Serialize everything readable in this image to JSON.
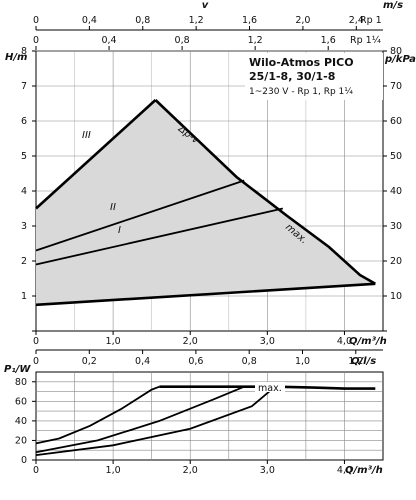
{
  "chart_data": [
    {
      "type": "line",
      "title": "Wilo-Atmos PICO",
      "subtitle": "25/1-8, 30/1-8",
      "note": "1~230 V - Rp 1, Rp 1¼",
      "xlabel": "Q/m³/h",
      "xlim": [
        0,
        4.5
      ],
      "x_ticks": [
        "0",
        "1,0",
        "2,0",
        "3,0",
        "4,0"
      ],
      "x_tick_values": [
        0,
        1,
        2,
        3,
        4
      ],
      "ylabel_left": "H/m",
      "ylim_left": [
        0,
        8
      ],
      "y_ticks_left": [
        "0",
        "1",
        "2",
        "3",
        "4",
        "5",
        "6",
        "7",
        "8"
      ],
      "ylabel_right": "p/kPa",
      "ylim_right": [
        0,
        80
      ],
      "y_ticks_right": [
        "0",
        "10",
        "20",
        "30",
        "40",
        "50",
        "60",
        "70",
        "80"
      ],
      "top_axes": [
        {
          "label": "v",
          "ticks": [
            "0",
            "0,4",
            "0,8",
            "1,2",
            "1,6",
            "2,0",
            "2,4"
          ],
          "tick_values": [
            0,
            0.4,
            0.8,
            1.2,
            1.6,
            2.0,
            2.4
          ],
          "xlim": [
            0,
            2.6
          ]
        },
        {
          "label": "m/s",
          "unit_label": "Rp 1",
          "ticks": [],
          "tick_values": []
        },
        {
          "label": "",
          "unit_label": "Rp 1¼",
          "ticks": [
            "0",
            "0,4",
            "0,8",
            "1,2",
            "1,6"
          ],
          "tick_values": [
            0,
            0.4,
            0.8,
            1.2,
            1.6
          ],
          "xlim": [
            0,
            1.9
          ]
        }
      ],
      "series": [
        {
          "name": "III",
          "x": [
            0,
            1.55
          ],
          "y": [
            3.5,
            6.6
          ]
        },
        {
          "name": "II",
          "x": [
            0,
            2.7
          ],
          "y": [
            2.3,
            4.3
          ]
        },
        {
          "name": "I",
          "x": [
            0,
            3.2
          ],
          "y": [
            1.9,
            3.5
          ]
        },
        {
          "name": "max.",
          "x": [
            1.55,
            2.6,
            3.25,
            3.8,
            4.2,
            4.4
          ],
          "y": [
            6.6,
            4.4,
            3.3,
            2.4,
            1.6,
            1.35
          ]
        },
        {
          "name": "",
          "x": [
            0,
            4.4
          ],
          "y": [
            0.75,
            1.35
          ]
        }
      ],
      "annotations": [
        "III",
        "II",
        "I",
        "Δp-v",
        "max."
      ]
    },
    {
      "type": "line",
      "xlabel": "Q/m³/h",
      "xlim": [
        0,
        4.5
      ],
      "x_ticks": [
        "0",
        "1,0",
        "2,0",
        "3,0",
        "4,0"
      ],
      "x_tick_values": [
        0,
        1,
        2,
        3,
        4
      ],
      "top_axis": {
        "label": "Q/l/s",
        "ticks": [
          "0",
          "0,2",
          "0,4",
          "0,6",
          "0,8",
          "1,0",
          "1,2"
        ],
        "tick_values": [
          0,
          0.2,
          0.4,
          0.6,
          0.8,
          1.0,
          1.2
        ],
        "xlim": [
          0,
          1.25
        ]
      },
      "ylabel": "P₁/W",
      "ylim": [
        0,
        90
      ],
      "y_ticks": [
        "0",
        "20",
        "40",
        "60",
        "80"
      ],
      "y_tick_values": [
        0,
        20,
        40,
        60,
        80
      ],
      "series": [
        {
          "name": "",
          "x": [
            0,
            0.3,
            0.7,
            1.1,
            1.5,
            1.6
          ],
          "y": [
            17,
            22,
            35,
            52,
            72,
            75
          ]
        },
        {
          "name": "",
          "x": [
            0,
            0.8,
            1.6,
            2.3,
            2.7
          ],
          "y": [
            8,
            20,
            40,
            62,
            75
          ]
        },
        {
          "name": "",
          "x": [
            0,
            1.0,
            2.0,
            2.8,
            3.1
          ],
          "y": [
            5,
            15,
            32,
            55,
            75
          ]
        },
        {
          "name": "max.",
          "x": [
            1.6,
            2.5,
            3.1,
            3.6,
            4.0,
            4.4
          ],
          "y": [
            75,
            75,
            75,
            74,
            73,
            73
          ]
        }
      ],
      "annotations": [
        "max."
      ]
    }
  ]
}
